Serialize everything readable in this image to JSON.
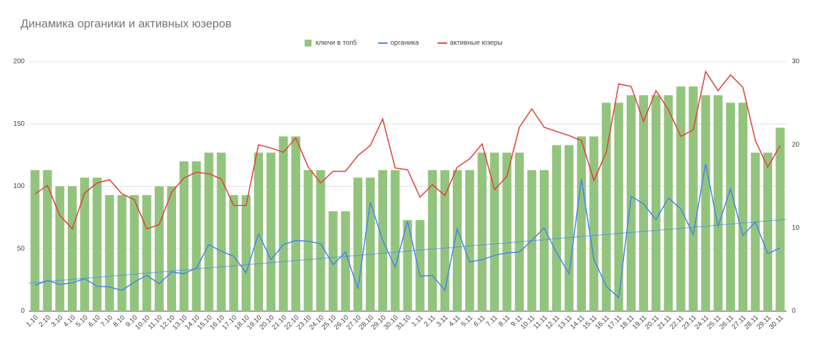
{
  "chart_data": {
    "type": "combo",
    "title": "Динамика органики и активных юзеров",
    "legend": "top",
    "grid": true,
    "categories": [
      "1.10",
      "2.10",
      "3.10",
      "4.10",
      "5.10",
      "6.10",
      "7.10",
      "8.10",
      "9.10",
      "10.10",
      "11.10",
      "12.10",
      "13.10",
      "14.10",
      "15.10",
      "16.10",
      "17.10",
      "18.10",
      "19.10",
      "20.10",
      "21.10",
      "22.10",
      "23.10",
      "24.10",
      "25.10",
      "26.10",
      "27.10",
      "28.10",
      "29.10",
      "30.10",
      "31.10",
      "1.11",
      "2.11",
      "3.11",
      "4.11",
      "5.11",
      "6.11",
      "7.11",
      "8.11",
      "9.11",
      "10.11",
      "11.11",
      "12.11",
      "13.11",
      "14.11",
      "15.11",
      "16.11",
      "17.11",
      "18.11",
      "19.11",
      "20.11",
      "21.11",
      "22.11",
      "23.11",
      "24.11",
      "25.11",
      "26.11",
      "27.11",
      "28.11",
      "29.11",
      "30.11"
    ],
    "ylim": [
      0,
      200
    ],
    "yticks": [
      0,
      50,
      100,
      150,
      200
    ],
    "y2lim": [
      0,
      30
    ],
    "y2ticks": [
      0,
      10,
      20,
      30
    ],
    "series": [
      {
        "name": "ключи в топ5",
        "kind": "bar",
        "color": "#93c47d",
        "axis": "y",
        "values": [
          113,
          113,
          100,
          100,
          107,
          107,
          93,
          93,
          93,
          93,
          100,
          100,
          120,
          120,
          127,
          127,
          93,
          93,
          127,
          127,
          140,
          140,
          113,
          113,
          80,
          80,
          107,
          107,
          113,
          113,
          73,
          73,
          113,
          113,
          113,
          113,
          127,
          127,
          127,
          127,
          113,
          113,
          133,
          133,
          140,
          140,
          167,
          167,
          173,
          173,
          173,
          173,
          180,
          180,
          173,
          173,
          167,
          167,
          127,
          127,
          147
        ]
      },
      {
        "name": "органика",
        "kind": "line",
        "color": "#4a86e8",
        "axis": "y2",
        "trendline": true,
        "values": [
          3.1,
          3.7,
          3.2,
          3.4,
          3.9,
          3.0,
          2.9,
          2.5,
          3.5,
          4.3,
          3.3,
          4.7,
          4.5,
          5.2,
          8.0,
          7.2,
          6.6,
          4.6,
          9.3,
          6.2,
          8.0,
          8.5,
          8.4,
          8.1,
          5.6,
          7.1,
          2.7,
          13.1,
          8.5,
          5.3,
          10.8,
          4.2,
          4.3,
          2.5,
          9.9,
          5.9,
          6.2,
          6.7,
          7.0,
          7.1,
          8.5,
          10.0,
          7.0,
          4.5,
          15.9,
          6.2,
          3.0,
          1.6,
          13.8,
          12.9,
          11.0,
          13.6,
          12.3,
          9.2,
          17.7,
          10.2,
          14.7,
          9.1,
          10.7,
          6.9,
          7.6
        ]
      },
      {
        "name": "активные юзеры",
        "kind": "line",
        "color": "#e0443a",
        "axis": "y2",
        "values": [
          14.1,
          15.1,
          11.5,
          9.9,
          14.2,
          15.4,
          15.8,
          14.1,
          13.4,
          9.9,
          10.4,
          14.3,
          16.0,
          16.7,
          16.5,
          15.9,
          12.7,
          12.7,
          20.0,
          19.6,
          19.1,
          20.8,
          17.3,
          15.4,
          16.8,
          16.8,
          18.7,
          19.9,
          23.1,
          17.2,
          17.0,
          13.7,
          15.2,
          13.9,
          17.3,
          18.3,
          20.1,
          14.6,
          16.2,
          22.1,
          24.3,
          22.1,
          21.6,
          21.1,
          20.5,
          15.7,
          19.1,
          27.3,
          27.0,
          22.8,
          26.5,
          24.2,
          21.0,
          21.8,
          28.8,
          26.5,
          28.4,
          26.9,
          20.5,
          17.3,
          19.9
        ]
      }
    ]
  }
}
